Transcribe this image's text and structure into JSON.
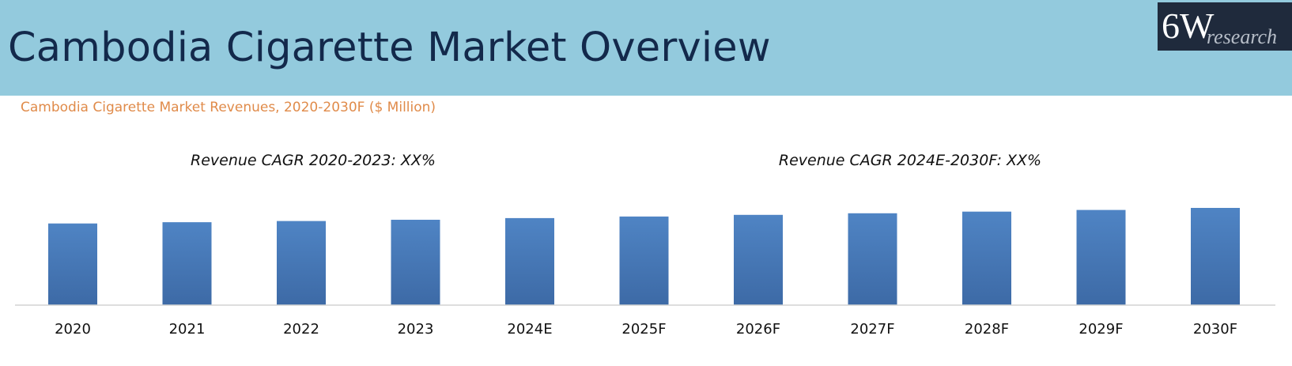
{
  "header": {
    "title": "Cambodia Cigarette Market Overview",
    "background_color": "#93cadd",
    "title_color": "#13294b"
  },
  "logo": {
    "main_text": "6W",
    "sub_text": "research",
    "background_color": "#1f2a3c"
  },
  "chart_data": {
    "type": "bar",
    "title": "Cambodia Cigarette Market Revenues, 2020-2030F ($ Million)",
    "categories": [
      "2020",
      "2021",
      "2022",
      "2023",
      "2024E",
      "2025F",
      "2026F",
      "2027F",
      "2028F",
      "2029F",
      "2030F"
    ],
    "values": [
      100,
      101.5,
      103,
      104.5,
      106.5,
      108.5,
      110.5,
      112.5,
      114.5,
      116.5,
      119
    ],
    "xlabel": "",
    "ylabel": "",
    "ylim": [
      0,
      120
    ],
    "grid": false,
    "legend": "none",
    "bar_color": "#4a7ebb",
    "annotations": [
      "Revenue CAGR 2020-2023: XX%",
      "Revenue CAGR 2024E-2030F: XX%"
    ]
  }
}
